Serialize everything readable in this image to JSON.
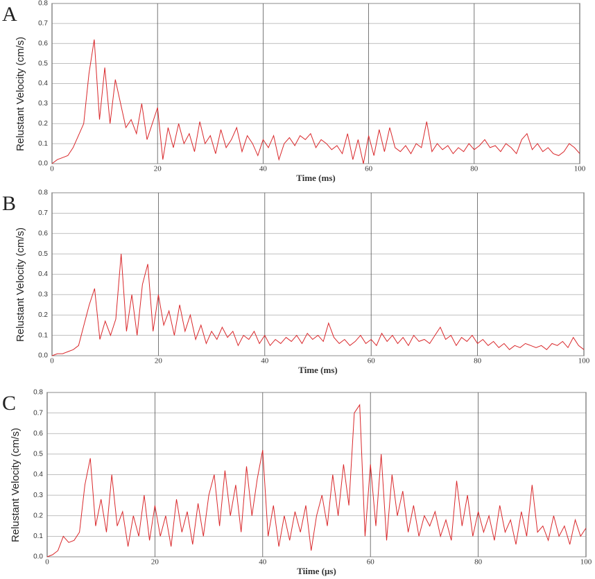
{
  "chart_data": [
    {
      "type": "line",
      "label": "A",
      "xlabel": "Time (ms)",
      "ylabel": "Relustant Velocity (cm/s)",
      "color": "#d9272a",
      "grid": true,
      "xlim": [
        0,
        100
      ],
      "xticks": [
        0,
        20,
        40,
        60,
        80,
        100
      ],
      "ylim": [
        0,
        0.8
      ],
      "yticks": [
        {
          "value": 0,
          "label": "0.0"
        },
        0.1,
        0.2,
        0.3,
        0.4,
        0.5,
        0.6,
        0.7,
        0.8
      ],
      "x": [
        0,
        1,
        2,
        3,
        4,
        5,
        6,
        7,
        8,
        9,
        10,
        11,
        12,
        13,
        14,
        15,
        16,
        17,
        18,
        19,
        20,
        21,
        22,
        23,
        24,
        25,
        26,
        27,
        28,
        29,
        30,
        31,
        32,
        33,
        34,
        35,
        36,
        37,
        38,
        39,
        40,
        41,
        42,
        43,
        44,
        45,
        46,
        47,
        48,
        49,
        50,
        51,
        52,
        53,
        54,
        55,
        56,
        57,
        58,
        59,
        60,
        61,
        62,
        63,
        64,
        65,
        66,
        67,
        68,
        69,
        70,
        71,
        72,
        73,
        74,
        75,
        76,
        77,
        78,
        79,
        80,
        81,
        82,
        83,
        84,
        85,
        86,
        87,
        88,
        89,
        90,
        91,
        92,
        93,
        94,
        95,
        96,
        97,
        98,
        99,
        100
      ],
      "values": [
        0,
        0.02,
        0.03,
        0.04,
        0.08,
        0.14,
        0.2,
        0.45,
        0.62,
        0.22,
        0.48,
        0.2,
        0.42,
        0.3,
        0.18,
        0.22,
        0.15,
        0.3,
        0.12,
        0.2,
        0.28,
        0.02,
        0.18,
        0.08,
        0.2,
        0.1,
        0.15,
        0.06,
        0.21,
        0.1,
        0.14,
        0.05,
        0.17,
        0.08,
        0.12,
        0.18,
        0.06,
        0.14,
        0.1,
        0.04,
        0.12,
        0.08,
        0.14,
        0.02,
        0.1,
        0.13,
        0.09,
        0.14,
        0.12,
        0.15,
        0.08,
        0.12,
        0.1,
        0.07,
        0.09,
        0.05,
        0.15,
        0.02,
        0.12,
        0,
        0.14,
        0.04,
        0.17,
        0.06,
        0.18,
        0.08,
        0.06,
        0.09,
        0.05,
        0.1,
        0.08,
        0.21,
        0.06,
        0.1,
        0.07,
        0.09,
        0.05,
        0.08,
        0.06,
        0.1,
        0.07,
        0.09,
        0.12,
        0.08,
        0.09,
        0.06,
        0.1,
        0.08,
        0.05,
        0.12,
        0.15,
        0.07,
        0.1,
        0.06,
        0.08,
        0.05,
        0.04,
        0.06,
        0.1,
        0.08,
        0.05
      ]
    },
    {
      "type": "line",
      "label": "B",
      "xlabel": "Time (ms)",
      "ylabel": "Relustant Velocity (cm/s)",
      "color": "#d9272a",
      "grid": true,
      "xlim": [
        0,
        100
      ],
      "xticks": [
        0,
        20,
        40,
        60,
        80,
        100
      ],
      "ylim": [
        0,
        0.8
      ],
      "yticks": [
        {
          "value": 0,
          "label": "0.0"
        },
        0.1,
        0.2,
        0.3,
        0.4,
        0.5,
        0.6,
        0.7,
        0.8
      ],
      "x": [
        0,
        1,
        2,
        3,
        4,
        5,
        6,
        7,
        8,
        9,
        10,
        11,
        12,
        13,
        14,
        15,
        16,
        17,
        18,
        19,
        20,
        21,
        22,
        23,
        24,
        25,
        26,
        27,
        28,
        29,
        30,
        31,
        32,
        33,
        34,
        35,
        36,
        37,
        38,
        39,
        40,
        41,
        42,
        43,
        44,
        45,
        46,
        47,
        48,
        49,
        50,
        51,
        52,
        53,
        54,
        55,
        56,
        57,
        58,
        59,
        60,
        61,
        62,
        63,
        64,
        65,
        66,
        67,
        68,
        69,
        70,
        71,
        72,
        73,
        74,
        75,
        76,
        77,
        78,
        79,
        80,
        81,
        82,
        83,
        84,
        85,
        86,
        87,
        88,
        89,
        90,
        91,
        92,
        93,
        94,
        95,
        96,
        97,
        98,
        99,
        100
      ],
      "values": [
        0,
        0.01,
        0.01,
        0.02,
        0.03,
        0.05,
        0.15,
        0.25,
        0.33,
        0.08,
        0.17,
        0.1,
        0.18,
        0.5,
        0.12,
        0.3,
        0.1,
        0.35,
        0.45,
        0.12,
        0.3,
        0.15,
        0.22,
        0.1,
        0.25,
        0.12,
        0.2,
        0.08,
        0.15,
        0.06,
        0.12,
        0.08,
        0.14,
        0.09,
        0.12,
        0.05,
        0.1,
        0.08,
        0.12,
        0.06,
        0.1,
        0.05,
        0.08,
        0.06,
        0.09,
        0.07,
        0.1,
        0.06,
        0.11,
        0.08,
        0.1,
        0.07,
        0.16,
        0.09,
        0.06,
        0.08,
        0.05,
        0.07,
        0.1,
        0.06,
        0.08,
        0.05,
        0.11,
        0.07,
        0.1,
        0.06,
        0.09,
        0.05,
        0.1,
        0.07,
        0.08,
        0.06,
        0.1,
        0.14,
        0.08,
        0.1,
        0.05,
        0.09,
        0.07,
        0.1,
        0.06,
        0.08,
        0.05,
        0.07,
        0.04,
        0.06,
        0.03,
        0.05,
        0.04,
        0.06,
        0.05,
        0.04,
        0.05,
        0.03,
        0.06,
        0.05,
        0.07,
        0.04,
        0.09,
        0.05,
        0.03
      ]
    },
    {
      "type": "line",
      "label": "C",
      "xlabel": "Tiime (μs)",
      "ylabel": "Relustant Velocity (cm/s)",
      "color": "#d9272a",
      "grid": true,
      "xlim": [
        0,
        100
      ],
      "xticks": [
        0,
        20,
        40,
        60,
        80,
        100
      ],
      "ylim": [
        0,
        0.8
      ],
      "yticks": [
        {
          "value": 0,
          "label": "0.0"
        },
        0.1,
        0.2,
        0.3,
        0.4,
        0.5,
        0.6,
        0.7,
        0.8
      ],
      "x": [
        0,
        1,
        2,
        3,
        4,
        5,
        6,
        7,
        8,
        9,
        10,
        11,
        12,
        13,
        14,
        15,
        16,
        17,
        18,
        19,
        20,
        21,
        22,
        23,
        24,
        25,
        26,
        27,
        28,
        29,
        30,
        31,
        32,
        33,
        34,
        35,
        36,
        37,
        38,
        39,
        40,
        41,
        42,
        43,
        44,
        45,
        46,
        47,
        48,
        49,
        50,
        51,
        52,
        53,
        54,
        55,
        56,
        57,
        58,
        59,
        60,
        61,
        62,
        63,
        64,
        65,
        66,
        67,
        68,
        69,
        70,
        71,
        72,
        73,
        74,
        75,
        76,
        77,
        78,
        79,
        80,
        81,
        82,
        83,
        84,
        85,
        86,
        87,
        88,
        89,
        90,
        91,
        92,
        93,
        94,
        95,
        96,
        97,
        98,
        99,
        100
      ],
      "values": [
        0,
        0.01,
        0.03,
        0.1,
        0.07,
        0.08,
        0.12,
        0.35,
        0.48,
        0.15,
        0.28,
        0.12,
        0.4,
        0.15,
        0.22,
        0.05,
        0.2,
        0.1,
        0.3,
        0.08,
        0.25,
        0.1,
        0.2,
        0.05,
        0.28,
        0.12,
        0.22,
        0.06,
        0.26,
        0.1,
        0.3,
        0.4,
        0.15,
        0.42,
        0.2,
        0.35,
        0.12,
        0.44,
        0.2,
        0.38,
        0.52,
        0.1,
        0.25,
        0.05,
        0.2,
        0.08,
        0.22,
        0.12,
        0.25,
        0.03,
        0.2,
        0.3,
        0.15,
        0.4,
        0.2,
        0.45,
        0.25,
        0.7,
        0.74,
        0.1,
        0.45,
        0.15,
        0.5,
        0.08,
        0.4,
        0.2,
        0.32,
        0.12,
        0.25,
        0.1,
        0.2,
        0.15,
        0.22,
        0.1,
        0.18,
        0.08,
        0.37,
        0.15,
        0.3,
        0.1,
        0.22,
        0.12,
        0.2,
        0.08,
        0.25,
        0.12,
        0.18,
        0.06,
        0.22,
        0.1,
        0.35,
        0.12,
        0.15,
        0.08,
        0.2,
        0.1,
        0.15,
        0.06,
        0.18,
        0.1,
        0.14
      ]
    }
  ]
}
